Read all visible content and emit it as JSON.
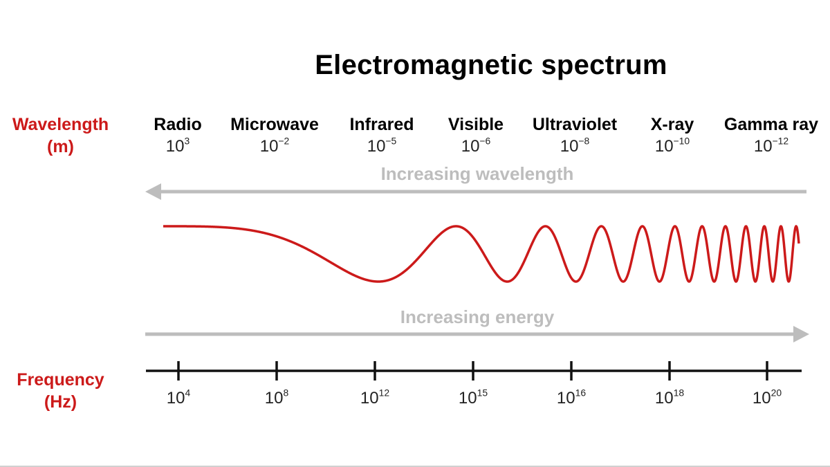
{
  "title": "Electromagnetic spectrum",
  "wavelength_label": {
    "line1": "Wavelength",
    "line2": "(m)"
  },
  "frequency_label": {
    "line1": "Frequency",
    "line2": "(Hz)"
  },
  "bands": [
    {
      "name": "Radio",
      "wavelength": "10",
      "exponent": "3"
    },
    {
      "name": "Microwave",
      "wavelength": "10",
      "exponent": "−2"
    },
    {
      "name": "Infrared",
      "wavelength": "10",
      "exponent": "−5"
    },
    {
      "name": "Visible",
      "wavelength": "10",
      "exponent": "−6"
    },
    {
      "name": "Ultraviolet",
      "wavelength": "10",
      "exponent": "−8"
    },
    {
      "name": "X-ray",
      "wavelength": "10",
      "exponent": "−10"
    },
    {
      "name": "Gamma ray",
      "wavelength": "10",
      "exponent": "−12"
    }
  ],
  "arrows": {
    "wavelength": {
      "label": "Increasing wavelength",
      "direction": "left"
    },
    "energy": {
      "label": "Increasing energy",
      "direction": "right"
    }
  },
  "frequency_ticks": [
    {
      "base": "10",
      "exponent": "4"
    },
    {
      "base": "10",
      "exponent": "8"
    },
    {
      "base": "10",
      "exponent": "12"
    },
    {
      "base": "10",
      "exponent": "15"
    },
    {
      "base": "10",
      "exponent": "16"
    },
    {
      "base": "10",
      "exponent": "18"
    },
    {
      "base": "10",
      "exponent": "20"
    }
  ],
  "colors": {
    "wave": "#cc1a1a",
    "side_labels": "#cc1a1a",
    "arrows": "#bdbdbd",
    "axis": "#111111"
  }
}
